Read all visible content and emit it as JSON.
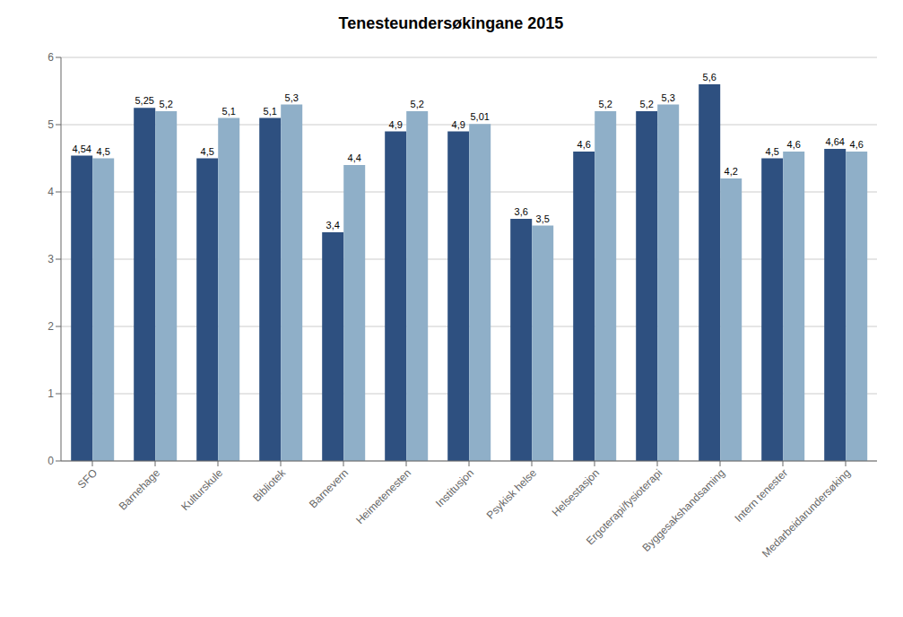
{
  "chart_data": {
    "type": "bar",
    "title": "Tenesteundersøkingane 2015",
    "categories": [
      "SFO",
      "Barnehage",
      "Kulturskule",
      "Bibliotek",
      "Barnevern",
      "Heimetenesten",
      "Institusjon",
      "Psykisk helse",
      "Helsestasjon",
      "Ergoterapi/fysioterapi",
      "Byggesakshandsaming",
      "Intern tenester",
      "Medarbeidarundersøking"
    ],
    "series": [
      {
        "color": "#2E5080",
        "values": [
          4.54,
          5.25,
          4.5,
          5.1,
          3.4,
          4.9,
          4.9,
          3.6,
          4.6,
          5.2,
          5.6,
          4.5,
          4.64
        ],
        "value_labels": [
          "4,54",
          "5,25",
          "4,5",
          "5,1",
          "3,4",
          "4,9",
          "4,9",
          "3,6",
          "4,6",
          "5,2",
          "5,6",
          "4,5",
          "4,64"
        ]
      },
      {
        "color": "#8FAFC8",
        "values": [
          4.5,
          5.2,
          5.1,
          5.3,
          4.4,
          5.2,
          5.01,
          3.5,
          5.2,
          5.3,
          4.2,
          4.6,
          4.6
        ],
        "value_labels": [
          "4,5",
          "5,2",
          "5,1",
          "5,3",
          "4,4",
          "5,2",
          "5,01",
          "3,5",
          "5,2",
          "5,3",
          "4,2",
          "4,6",
          "4,6"
        ]
      }
    ],
    "ylim": [
      0,
      6
    ],
    "yticks": [
      0,
      1,
      2,
      3,
      4,
      5,
      6
    ],
    "grid": true,
    "data_labels": true
  }
}
